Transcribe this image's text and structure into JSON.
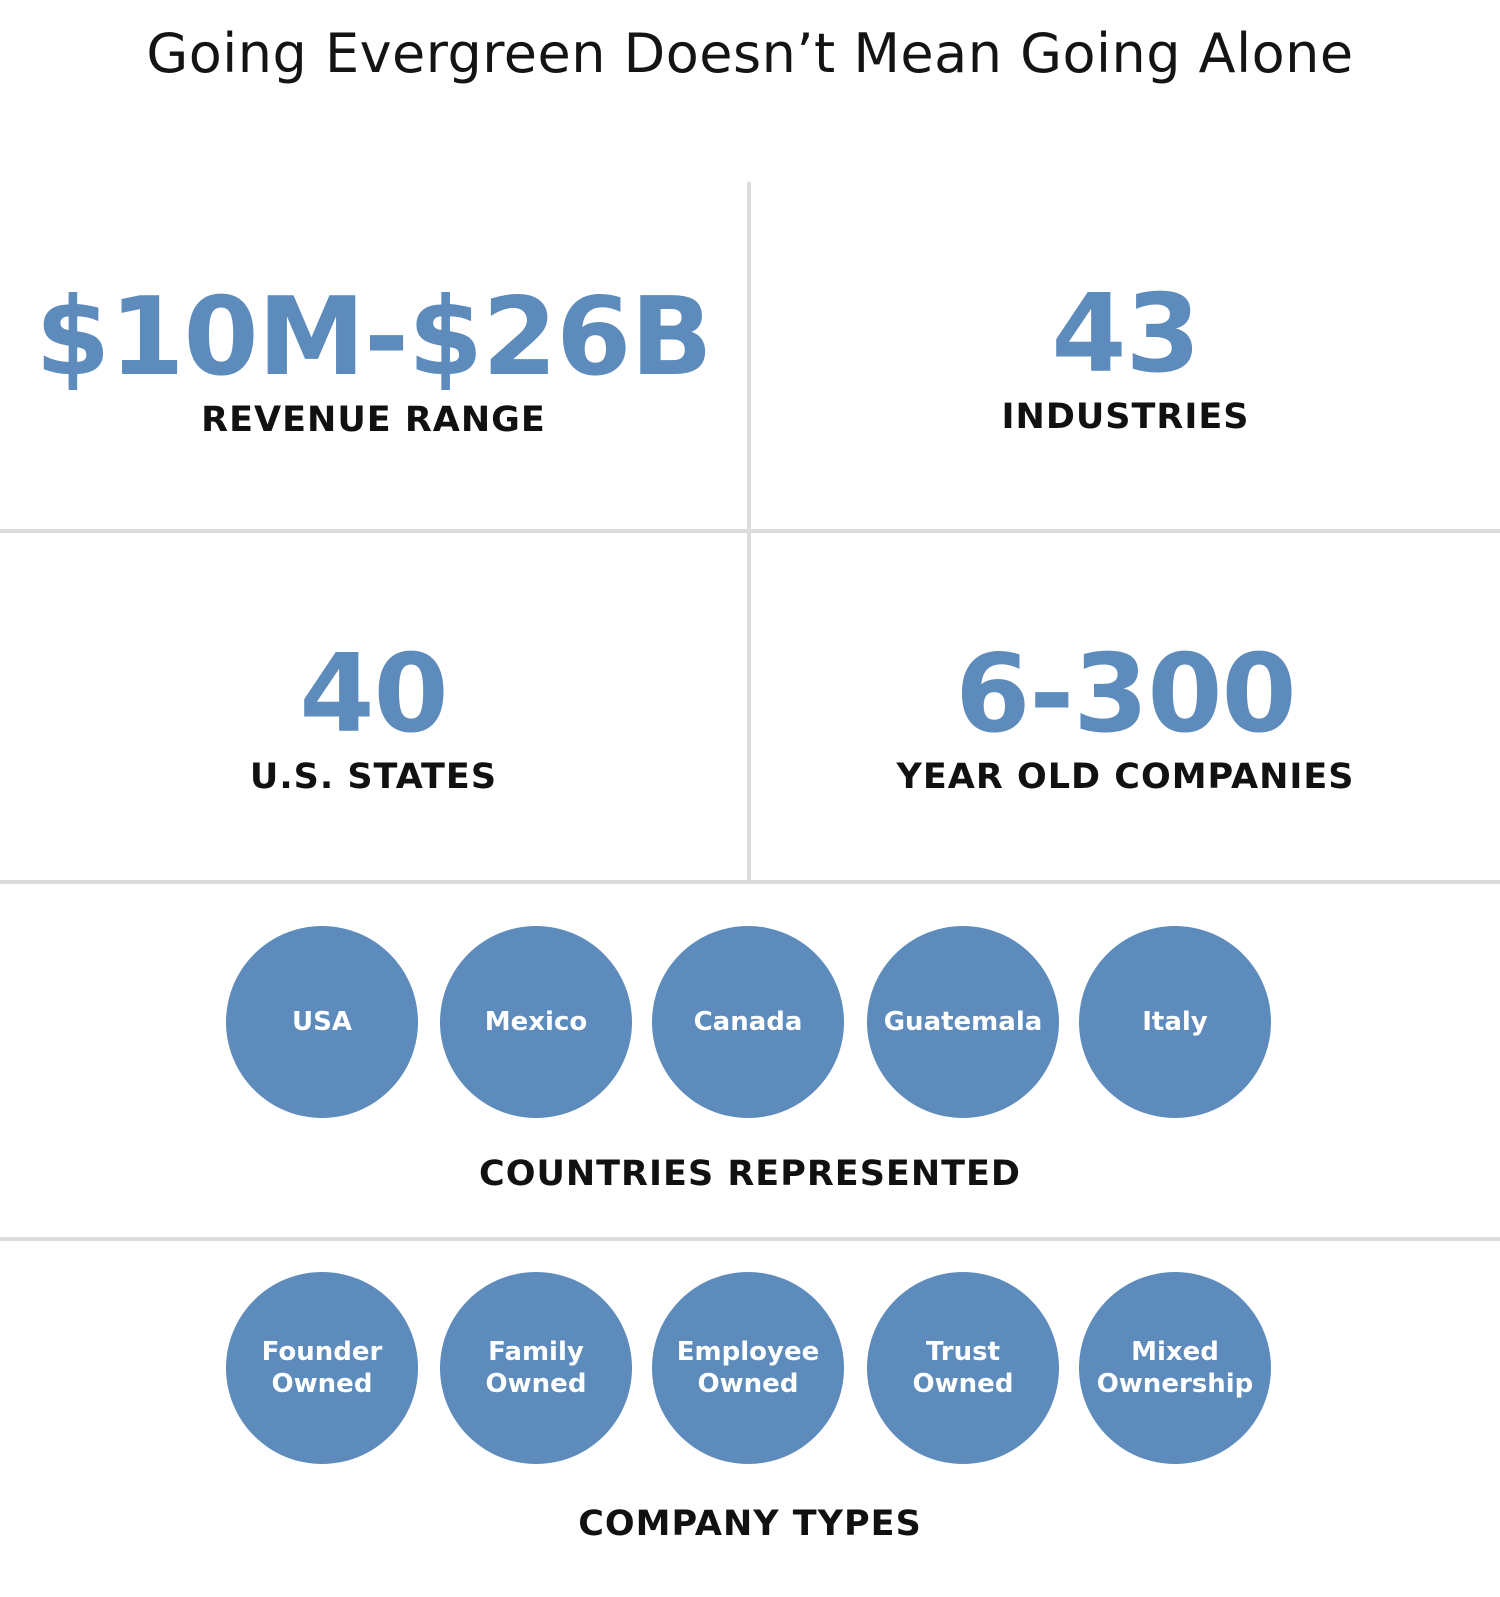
{
  "title": "Going Evergreen Doesn’t Mean Going Alone",
  "stats": [
    {
      "value": "$10M-$26B",
      "label": "REVENUE RANGE"
    },
    {
      "value": "43",
      "label": "INDUSTRIES"
    },
    {
      "value": "40",
      "label": "U.S. STATES"
    },
    {
      "value": "6-300",
      "label": "YEAR OLD COMPANIES"
    }
  ],
  "countries": {
    "items": [
      "USA",
      "Mexico",
      "Canada",
      "Guatemala",
      "Italy"
    ],
    "label": "COUNTRIES REPRESENTED"
  },
  "company_types": {
    "items": [
      "Founder\nOwned",
      "Family\nOwned",
      "Employee\nOwned",
      "Trust\nOwned",
      "Mixed\nOwnership"
    ],
    "label": "COMPANY TYPES"
  },
  "colors": {
    "accent": "#5d8bbb",
    "text": "#111111",
    "divider": "#dcdcdc"
  }
}
